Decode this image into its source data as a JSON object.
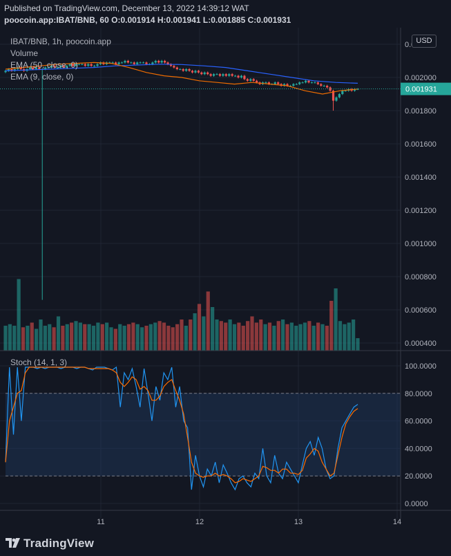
{
  "header": {
    "published": "Published on TradingView.com, December 13, 2022 14:39:12 WAT",
    "ohlc": "poocoin.app:IBAT/BNB, 60 O:0.001914 H:0.001941 L:0.001885 C:0.001931"
  },
  "legend": {
    "symbol": "IBAT/BNB, 1h, poocoin.app",
    "volume": "Volume",
    "ema50": "EMA (50, close, 0)",
    "ema9": "EMA (9, close, 0)",
    "stoch": "Stoch (14, 1, 3)"
  },
  "currency_button": "USD",
  "logo": "TradingView",
  "colors": {
    "background": "#131722",
    "up": "#26a69a",
    "down": "#ef5350",
    "ema50": "#2962ff",
    "ema9": "#ef6c00",
    "stoch_k": "#2196f3",
    "stoch_d": "#ff6d00",
    "price_tag": "#26a69a"
  },
  "chart_data": [
    {
      "type": "candlestick",
      "title": "IBAT/BNB, 1h, poocoin.app",
      "y_ticks": [
        "0.002200",
        "0.002000",
        "0.001800",
        "0.001600",
        "0.001400",
        "0.001200",
        "0.001000",
        "0.000800",
        "0.000600",
        "0.000400"
      ],
      "last_price_label": "0.001931",
      "x_ticks": [
        "11",
        "12",
        "13",
        "14"
      ],
      "last_close": 0.001931,
      "candles_close_approx": [
        0.00204,
        0.00205,
        0.00204,
        0.00205,
        0.00206,
        0.00205,
        0.00204,
        0.00205,
        0.00206,
        0.00205,
        0.00206,
        0.00205,
        0.00205,
        0.00206,
        0.00206,
        0.00207,
        0.00206,
        0.00206,
        0.00207,
        0.00206,
        0.00207,
        0.00208,
        0.00207,
        0.00208,
        0.00208,
        0.00208,
        0.00207,
        0.00208,
        0.00207,
        0.00207,
        0.00208,
        0.00209,
        0.00208,
        0.00209,
        0.00209,
        0.00209,
        0.00208,
        0.00209,
        0.00209,
        0.0021,
        0.00209,
        0.00209,
        0.00208,
        0.00209,
        0.00209,
        0.00209,
        0.00208,
        0.00208,
        0.00209,
        0.0021,
        0.00209,
        0.0021,
        0.00209,
        0.00208,
        0.00207,
        0.00206,
        0.00205,
        0.00205,
        0.00204,
        0.00205,
        0.00204,
        0.00203,
        0.00204,
        0.00203,
        0.00202,
        0.00203,
        0.00202,
        0.00201,
        0.00202,
        0.00202,
        0.00201,
        0.00202,
        0.00201,
        0.00202,
        0.00201,
        0.00201,
        0.002,
        0.00201,
        0.00199,
        0.00198,
        0.00199,
        0.00198,
        0.00197,
        0.00196,
        0.00197,
        0.00197,
        0.00196,
        0.00196,
        0.00197,
        0.00196,
        0.00195,
        0.00196,
        0.00195,
        0.00195,
        0.00196,
        0.00196,
        0.00197,
        0.00197,
        0.00198,
        0.00197,
        0.00197,
        0.00197,
        0.00196,
        0.00195,
        0.00195,
        0.00194,
        0.00192,
        0.00186,
        0.00188,
        0.0019,
        0.00192,
        0.00192,
        0.00193,
        0.00192,
        0.00193,
        0.00193
      ],
      "ema50_approx": [
        0.00204,
        0.002045,
        0.00205,
        0.002055,
        0.00206,
        0.00207,
        0.002075,
        0.00208,
        0.002078,
        0.00207,
        0.00206,
        0.00204,
        0.00202,
        0.002,
        0.00198,
        0.00197,
        0.001965
      ],
      "ema9_approx": [
        0.00205,
        0.00206,
        0.00207,
        0.00208,
        0.002085,
        0.00209,
        0.002085,
        0.00206,
        0.00203,
        0.00201,
        0.002,
        0.00198,
        0.00197,
        0.00196,
        0.00197,
        0.00196,
        0.00195,
        0.00192,
        0.0019,
        0.00192,
        0.00193
      ]
    },
    {
      "type": "bar",
      "title": "Volume",
      "values_approx": [
        0.8,
        0.85,
        0.8,
        2.3,
        0.75,
        0.8,
        0.9,
        0.7,
        1.0,
        0.8,
        0.85,
        0.75,
        1.1,
        0.8,
        0.85,
        0.9,
        0.95,
        0.9,
        0.85,
        0.85,
        0.8,
        0.9,
        0.85,
        0.9,
        0.75,
        0.7,
        0.85,
        0.8,
        0.85,
        0.9,
        0.85,
        0.75,
        0.8,
        0.85,
        0.9,
        0.95,
        0.9,
        0.8,
        0.75,
        0.85,
        1.0,
        0.8,
        1.0,
        1.2,
        1.5,
        1.1,
        1.9,
        1.4,
        1.0,
        0.95,
        0.9,
        1.0,
        0.85,
        0.9,
        0.8,
        0.95,
        1.1,
        0.9,
        1.0,
        0.85,
        0.9,
        0.8,
        0.95,
        1.0,
        0.85,
        0.9,
        0.8,
        0.85,
        0.9,
        0.95,
        0.8,
        0.9,
        0.85,
        0.8,
        1.6,
        2.0,
        0.95,
        0.85,
        0.9,
        1.0,
        0.4
      ]
    },
    {
      "type": "line",
      "title": "Stoch (14, 1, 3)",
      "y_ticks": [
        "100.0000",
        "80.0000",
        "60.0000",
        "40.0000",
        "20.0000",
        "0.0000"
      ],
      "ylim": [
        0,
        100
      ],
      "bands": [
        20,
        80
      ],
      "x_ticks": [
        "11",
        "12",
        "13",
        "14"
      ],
      "series": [
        {
          "values": [
            30,
            99,
            50,
            99,
            60,
            99,
            99,
            99,
            98,
            99,
            98,
            99,
            99,
            99,
            98,
            99,
            99,
            99,
            98,
            99,
            99,
            98,
            97,
            99,
            99,
            99,
            98,
            97,
            99,
            70,
            95,
            90,
            98,
            85,
            70,
            98,
            80,
            60,
            85,
            75,
            95,
            90,
            99,
            70,
            85,
            60,
            55,
            10,
            35,
            20,
            12,
            25,
            20,
            30,
            15,
            28,
            22,
            15,
            10,
            18,
            20,
            15,
            12,
            22,
            18,
            40,
            20,
            15,
            35,
            22,
            18,
            30,
            25,
            20,
            15,
            28,
            40,
            45,
            35,
            48,
            40,
            25,
            18,
            20,
            40,
            55,
            60,
            65,
            70,
            72
          ]
        },
        {
          "values": [
            30,
            60,
            70,
            80,
            82,
            95,
            99,
            99,
            99,
            99,
            99,
            99,
            99,
            99,
            99,
            99,
            99,
            99,
            99,
            99,
            99,
            98,
            98,
            98,
            98,
            98,
            98,
            97,
            95,
            88,
            85,
            88,
            92,
            90,
            83,
            85,
            82,
            75,
            75,
            78,
            85,
            88,
            90,
            82,
            75,
            65,
            48,
            30,
            22,
            20,
            19,
            20,
            20,
            22,
            20,
            21,
            20,
            18,
            15,
            16,
            18,
            17,
            16,
            18,
            20,
            27,
            26,
            24,
            24,
            22,
            25,
            25,
            22,
            22,
            21,
            24,
            33,
            36,
            40,
            38,
            30,
            25,
            20,
            22,
            35,
            48,
            58,
            63,
            67,
            69
          ]
        }
      ]
    }
  ]
}
